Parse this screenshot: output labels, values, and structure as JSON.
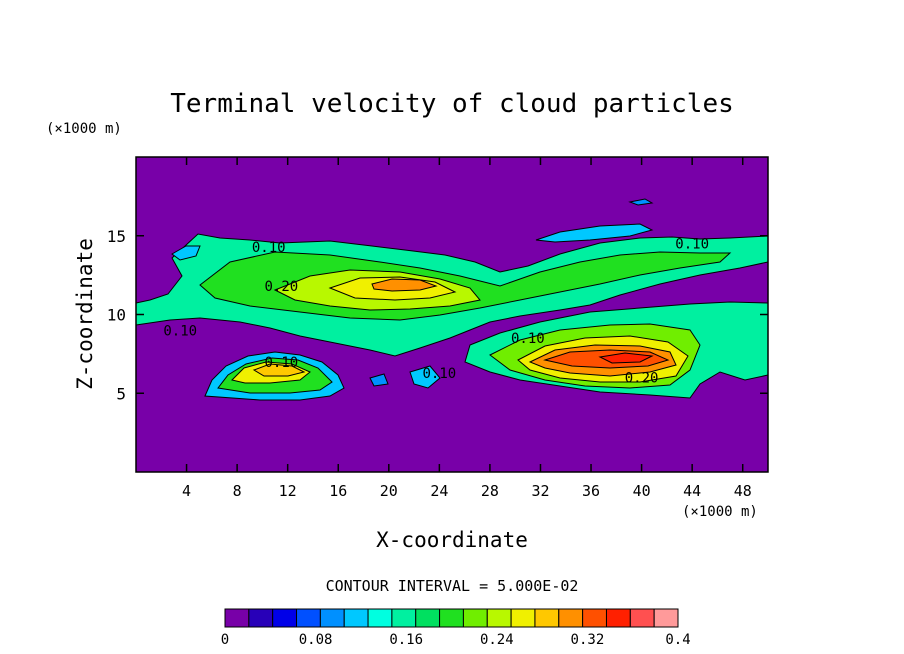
{
  "chart_data": {
    "type": "heatmap",
    "title": "Terminal velocity of cloud particles",
    "xlabel": "X-coordinate",
    "ylabel": "Z-coordinate",
    "x_unit": "(×1000 m)",
    "y_unit": "(×1000 m)",
    "xlim": [
      0,
      50
    ],
    "ylim": [
      0,
      20
    ],
    "x_ticks": [
      4,
      8,
      12,
      16,
      20,
      24,
      28,
      32,
      36,
      40,
      44,
      48
    ],
    "y_ticks": [
      5,
      10,
      15
    ],
    "contour_interval_text": "CONTOUR INTERVAL = 5.000E-02",
    "contour_labels": [
      {
        "text": "0.10",
        "x": 10.5,
        "z": 14.3
      },
      {
        "text": "0.20",
        "x": 11.5,
        "z": 11.8
      },
      {
        "text": "0.10",
        "x": 3.5,
        "z": 9.0
      },
      {
        "text": "0.10",
        "x": 11.5,
        "z": 7.0
      },
      {
        "text": "0.10",
        "x": 24.0,
        "z": 6.3
      },
      {
        "text": "0.10",
        "x": 31.0,
        "z": 8.5
      },
      {
        "text": "0.20",
        "x": 40.0,
        "z": 6.0
      },
      {
        "text": "0.10",
        "x": 44.0,
        "z": 14.5
      }
    ],
    "colorbar": {
      "tick_labels": [
        "0",
        "0.08",
        "0.16",
        "0.24",
        "0.32",
        "0.4"
      ],
      "min": 0,
      "max": 0.4,
      "colors": [
        "#7800a8",
        "#2800b8",
        "#0000e8",
        "#0050ff",
        "#0090ff",
        "#00c8ff",
        "#00ffe0",
        "#00f0a0",
        "#00e060",
        "#20e020",
        "#70ee00",
        "#b8f800",
        "#f0f000",
        "#ffc800",
        "#ff9000",
        "#ff5000",
        "#ff2000",
        "#ff5050",
        "#ff9a9a"
      ]
    },
    "background_color": "#7800a8"
  }
}
